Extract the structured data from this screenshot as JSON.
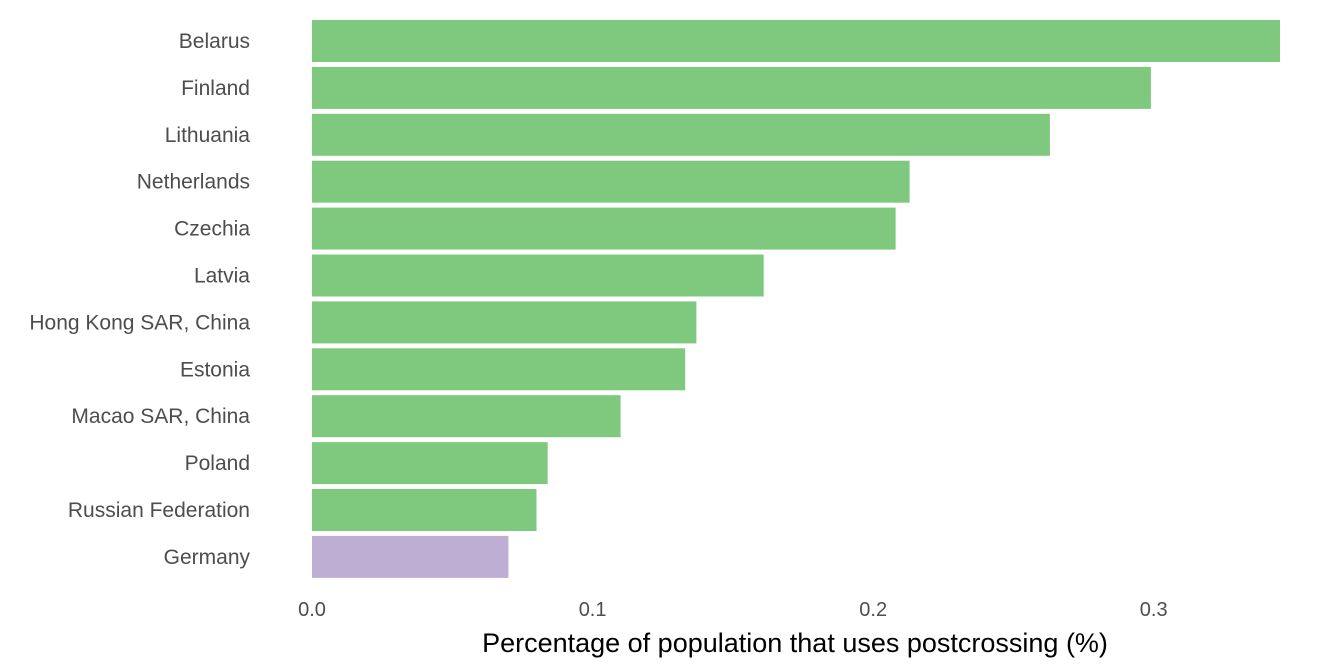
{
  "chart_data": {
    "type": "bar",
    "orientation": "horizontal",
    "categories": [
      "Belarus",
      "Finland",
      "Lithuania",
      "Netherlands",
      "Czechia",
      "Latvia",
      "Hong Kong SAR, China",
      "Estonia",
      "Macao SAR, China",
      "Poland",
      "Russian Federation",
      "Germany"
    ],
    "values": [
      0.345,
      0.299,
      0.263,
      0.213,
      0.208,
      0.161,
      0.137,
      0.133,
      0.11,
      0.084,
      0.08,
      0.07
    ],
    "bar_colors": [
      "#7fc97f",
      "#7fc97f",
      "#7fc97f",
      "#7fc97f",
      "#7fc97f",
      "#7fc97f",
      "#7fc97f",
      "#7fc97f",
      "#7fc97f",
      "#7fc97f",
      "#7fc97f",
      "#beaed4"
    ],
    "xlabel": "Percentage of population that uses postcrossing (%)",
    "ylabel": "",
    "xlim": [
      0,
      0.345
    ],
    "xticks": [
      0.0,
      0.1,
      0.2,
      0.3
    ],
    "xtick_labels": [
      "0.0",
      "0.1",
      "0.2",
      "0.3"
    ],
    "grid": false,
    "legend": "none"
  }
}
